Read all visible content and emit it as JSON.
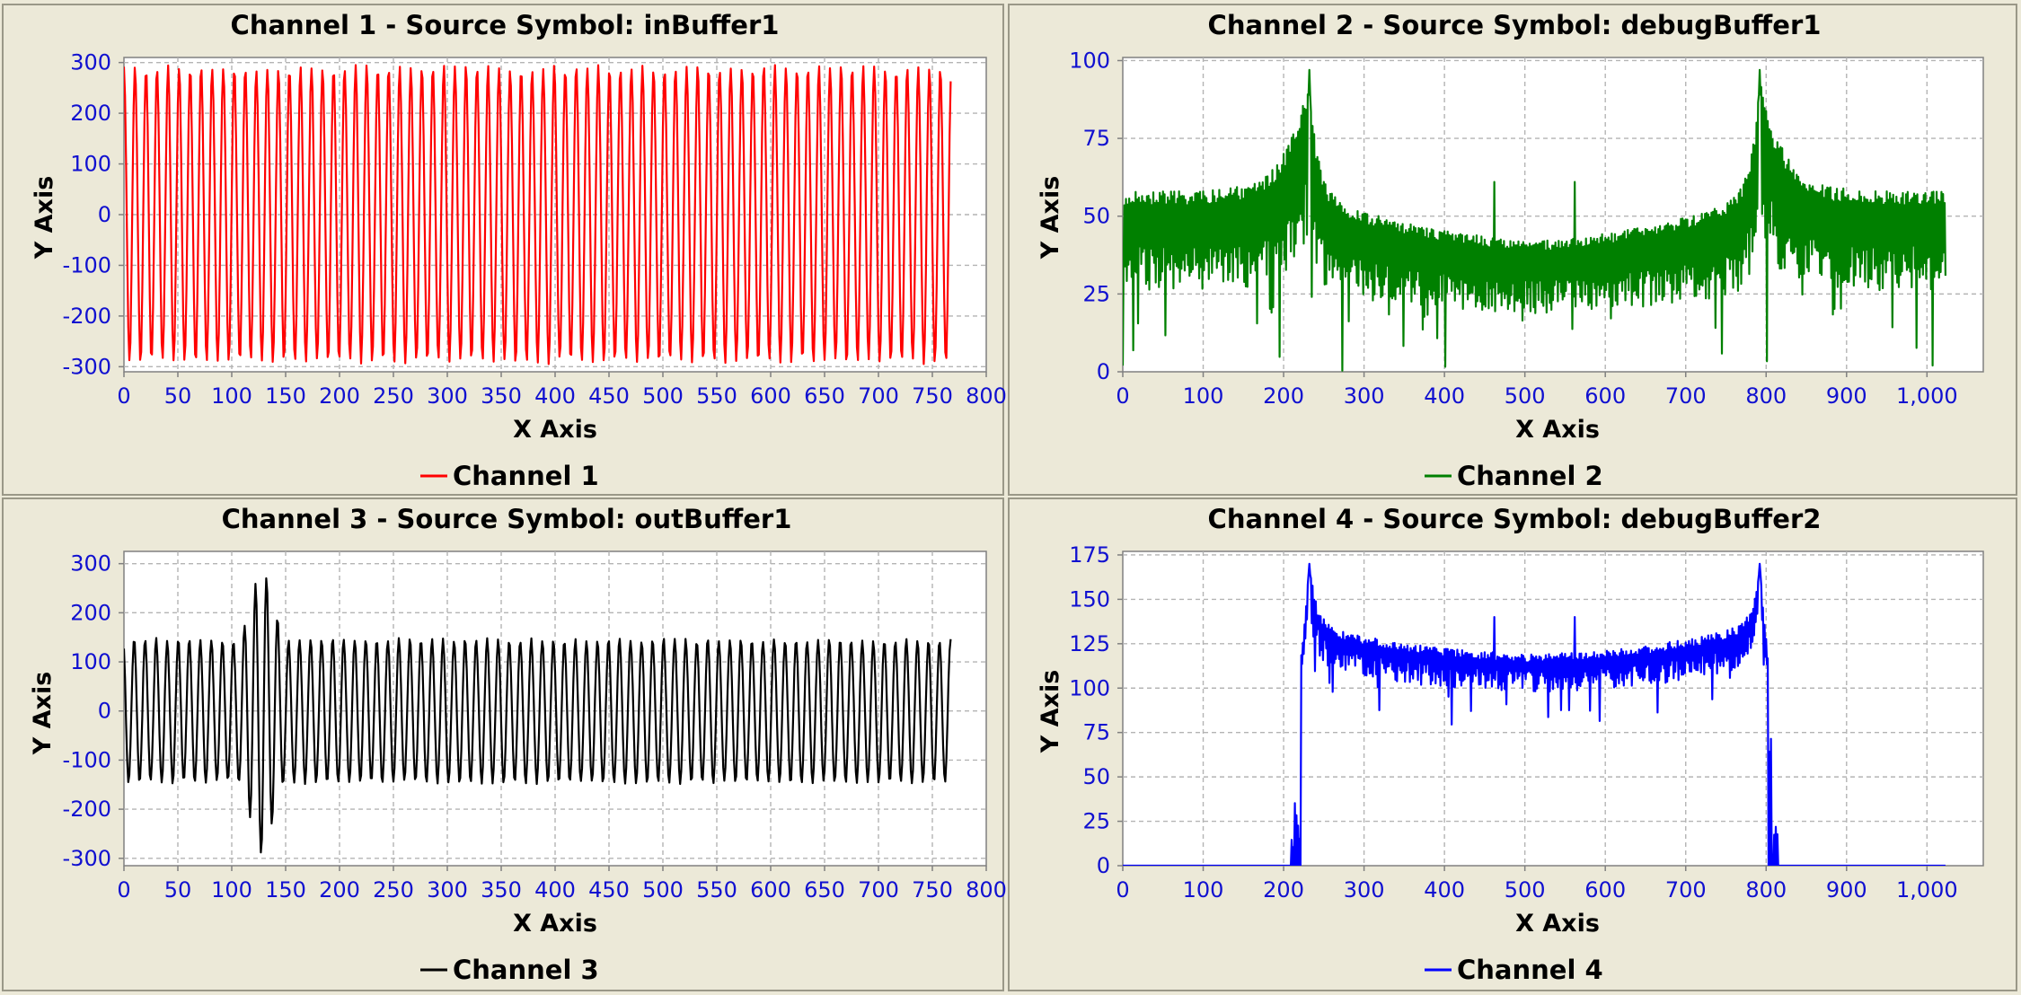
{
  "charts": [
    {
      "title": "Channel 1 - Source Symbol: inBuffer1",
      "xlabel": "X Axis",
      "ylabel": "Y Axis",
      "legend": "Channel 1",
      "color": "#ff0000"
    },
    {
      "title": "Channel 2 - Source Symbol: debugBuffer1",
      "xlabel": "X Axis",
      "ylabel": "Y Axis",
      "legend": "Channel 2",
      "color": "#008000"
    },
    {
      "title": "Channel 3 - Source Symbol: outBuffer1",
      "xlabel": "X Axis",
      "ylabel": "Y Axis",
      "legend": "Channel 3",
      "color": "#000000"
    },
    {
      "title": "Channel 4 - Source Symbol: debugBuffer2",
      "xlabel": "X Axis",
      "ylabel": "Y Axis",
      "legend": "Channel 4",
      "color": "#0000ff"
    }
  ],
  "chart_data": [
    {
      "type": "line",
      "title": "Channel 1 - Source Symbol: inBuffer1",
      "xlabel": "X Axis",
      "ylabel": "Y Axis",
      "legend": "top-bottom: bottom-center",
      "grid": true,
      "xlim": [
        0,
        800
      ],
      "ylim": [
        -310,
        310
      ],
      "xticks": [
        0,
        50,
        100,
        150,
        200,
        250,
        300,
        350,
        400,
        450,
        500,
        550,
        600,
        650,
        700,
        750,
        800
      ],
      "xtick_labels": [
        "0",
        "50",
        "100",
        "150",
        "200",
        "250",
        "300",
        "350",
        "400",
        "450",
        "500",
        "550",
        "600",
        "650",
        "700",
        "750",
        "800"
      ],
      "yticks": [
        -300,
        -200,
        -100,
        0,
        100,
        200,
        300
      ],
      "ytick_labels": [
        "-300",
        "-200",
        "-100",
        "0",
        "100",
        "200",
        "300"
      ],
      "series": [
        {
          "name": "Channel 1",
          "color": "#ff0000",
          "x_start": 0,
          "x_end": 767,
          "description_values": {
            "amplitude_approx": 290,
            "cycles_approx": 75
          }
        }
      ]
    },
    {
      "type": "line",
      "title": "Channel 2 - Source Symbol: debugBuffer1",
      "xlabel": "X Axis",
      "ylabel": "Y Axis",
      "legend": "bottom-center",
      "grid": true,
      "xlim": [
        0,
        1070
      ],
      "ylim": [
        0,
        101
      ],
      "xticks": [
        0,
        100,
        200,
        300,
        400,
        500,
        600,
        700,
        800,
        900,
        1000
      ],
      "xtick_labels": [
        "0",
        "100",
        "200",
        "300",
        "400",
        "500",
        "600",
        "700",
        "800",
        "900",
        "1,000"
      ],
      "yticks": [
        0,
        25,
        50,
        75,
        100
      ],
      "ytick_labels": [
        "0",
        "25",
        "50",
        "75",
        "100"
      ],
      "series": [
        {
          "name": "Channel 2",
          "color": "#008000",
          "x_start": 0,
          "x_end": 1023,
          "peaks": [
            {
              "x": 232,
              "y": 97
            },
            {
              "x": 792,
              "y": 97
            }
          ],
          "spikes": [
            {
              "x": 462,
              "y": 61
            },
            {
              "x": 562,
              "y": 61
            }
          ],
          "center_level_approx": 38
        }
      ]
    },
    {
      "type": "line",
      "title": "Channel 3 - Source Symbol: outBuffer1",
      "xlabel": "X Axis",
      "ylabel": "Y Axis",
      "legend": "bottom-center",
      "grid": true,
      "xlim": [
        0,
        800
      ],
      "ylim": [
        -315,
        325
      ],
      "xticks": [
        0,
        50,
        100,
        150,
        200,
        250,
        300,
        350,
        400,
        450,
        500,
        550,
        600,
        650,
        700,
        750,
        800
      ],
      "xtick_labels": [
        "0",
        "50",
        "100",
        "150",
        "200",
        "250",
        "300",
        "350",
        "400",
        "450",
        "500",
        "550",
        "600",
        "650",
        "700",
        "750",
        "800"
      ],
      "yticks": [
        -300,
        -200,
        -100,
        0,
        100,
        200,
        300
      ],
      "ytick_labels": [
        "-300",
        "-200",
        "-100",
        "0",
        "100",
        "200",
        "300"
      ],
      "series": [
        {
          "name": "Channel 3",
          "color": "#000000",
          "x_start": 0,
          "x_end": 767,
          "amplitude_approx": 150,
          "burst": {
            "x_center": 128,
            "max": 312,
            "min": -285
          }
        }
      ]
    },
    {
      "type": "line",
      "title": "Channel 4 - Source Symbol: debugBuffer2",
      "xlabel": "X Axis",
      "ylabel": "Y Axis",
      "legend": "bottom-center",
      "grid": true,
      "xlim": [
        0,
        1070
      ],
      "ylim": [
        0,
        177
      ],
      "xticks": [
        0,
        100,
        200,
        300,
        400,
        500,
        600,
        700,
        800,
        900,
        1000
      ],
      "xtick_labels": [
        "0",
        "100",
        "200",
        "300",
        "400",
        "500",
        "600",
        "700",
        "800",
        "900",
        "1,000"
      ],
      "yticks": [
        0,
        25,
        50,
        75,
        100,
        125,
        150,
        175
      ],
      "ytick_labels": [
        "0",
        "25",
        "50",
        "75",
        "100",
        "125",
        "150",
        "175"
      ],
      "series": [
        {
          "name": "Channel 4",
          "color": "#0000ff",
          "x_start": 0,
          "x_end": 1023,
          "passband": [
            208,
            815
          ],
          "peaks": [
            {
              "x": 232,
              "y": 170
            },
            {
              "x": 792,
              "y": 170
            }
          ],
          "spikes": [
            {
              "x": 462,
              "y": 140
            },
            {
              "x": 562,
              "y": 140
            }
          ],
          "center_level_approx": 116
        }
      ]
    }
  ]
}
